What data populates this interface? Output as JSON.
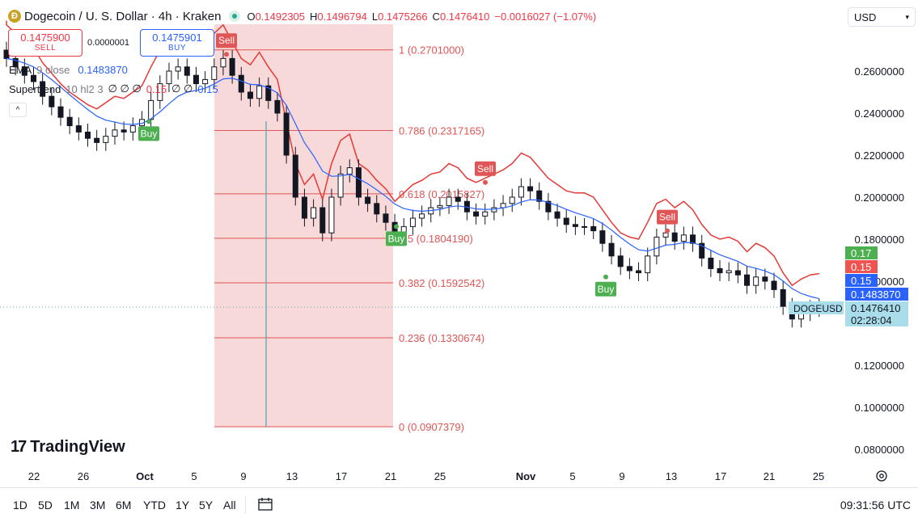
{
  "header": {
    "coin_glyph": "Ð",
    "title": "Dogecoin / U. S. Dollar · 4h · Kraken",
    "ohlc": [
      {
        "k": "O",
        "v": "0.1492305"
      },
      {
        "k": "H",
        "v": "0.1496794"
      },
      {
        "k": "L",
        "v": "0.1475266"
      },
      {
        "k": "C",
        "v": "0.1476410"
      },
      {
        "k": "",
        "v": "−0.0016027 (−1.07%)"
      }
    ],
    "currency": "USD"
  },
  "trade": {
    "sell_price": "0.1475900",
    "sell_label": "SELL",
    "spread": "0.0000001",
    "buy_price": "0.1475901",
    "buy_label": "BUY"
  },
  "indicators": {
    "ema_name": "EMA",
    "ema_params": "9 close",
    "ema_value": "0.1483870",
    "st_name": "Supertrend",
    "st_params": "10 hl2 3",
    "st_vals": "∅ ∅ ∅",
    "st_red": "0.15",
    "st_vals2": "∅ ∅",
    "st_blue": "0.15",
    "collapse_glyph": "^"
  },
  "branding": {
    "logo_mark": "17",
    "logo_text": "TradingView"
  },
  "timeframes": [
    "1D",
    "5D",
    "1M",
    "3M",
    "6M",
    "YTD",
    "1Y",
    "5Y",
    "All"
  ],
  "clock": "09:31:56 UTC",
  "chart_data": {
    "type": "candlestick",
    "symbol": "DOGEUSD",
    "interval": "4h",
    "y_axis_ticks": [
      "0.2600000",
      "0.2400000",
      "0.2200000",
      "0.2000000",
      "0.1800000",
      "0.1600000",
      "0.1200000",
      "0.1000000",
      "0.0800000"
    ],
    "ylim": [
      0.07,
      0.29
    ],
    "x_axis_ticks": [
      "22",
      "26",
      "Oct",
      "5",
      "9",
      "13",
      "17",
      "21",
      "25",
      "Nov",
      "5",
      "9",
      "13",
      "17",
      "21",
      "25"
    ],
    "fibonacci": {
      "levels": [
        {
          "label": "1 (0.2701000)",
          "value": 0.2701
        },
        {
          "label": "0.786 (0.2317165)",
          "value": 0.2317165
        },
        {
          "label": "0.618 (0.2015827)",
          "value": 0.2015827
        },
        {
          "label": "0.5 (0.1804190)",
          "value": 0.180419
        },
        {
          "label": "0.382 (0.1592542)",
          "value": 0.1592542
        },
        {
          "label": "0.236 (0.1330674)",
          "value": 0.1330674
        },
        {
          "label": "0 (0.0907379)",
          "value": 0.0907379
        }
      ]
    },
    "signals": [
      {
        "label": "Sell",
        "type": "sell"
      },
      {
        "label": "Sell",
        "type": "sell"
      },
      {
        "label": "Buy",
        "type": "buy"
      },
      {
        "label": "Buy",
        "type": "buy"
      },
      {
        "label": "Sell",
        "type": "sell"
      },
      {
        "label": "Sell",
        "type": "sell"
      },
      {
        "label": "Buy",
        "type": "buy"
      }
    ],
    "price_labels": [
      {
        "text": "0.17",
        "color": "#4caf50"
      },
      {
        "text": "0.15",
        "color": "#ef5350"
      },
      {
        "text": "0.15",
        "color": "#2962ff"
      },
      {
        "text": "0.1483870",
        "color": "#2962ff"
      },
      {
        "text": "0.1476410",
        "color": "#a8dde9"
      },
      {
        "text": "02:28:04",
        "color": "#a8dde9"
      }
    ],
    "last_price": 0.147641,
    "ema_value": 0.148387,
    "colors": {
      "up": "#131722",
      "down": "#131722",
      "ema": "#2962ff",
      "st_up": "#43a047",
      "st_down": "#e53935",
      "fib_fill": "#f4cccc"
    },
    "series": [
      {
        "name": "DOGEUSD",
        "close": [
          0.266,
          0.262,
          0.258,
          0.255,
          0.248,
          0.243,
          0.238,
          0.234,
          0.231,
          0.228,
          0.226,
          0.229,
          0.232,
          0.231,
          0.234,
          0.237,
          0.246,
          0.254,
          0.26,
          0.262,
          0.258,
          0.254,
          0.256,
          0.262,
          0.266,
          0.258,
          0.25,
          0.247,
          0.253,
          0.246,
          0.24,
          0.22,
          0.2,
          0.19,
          0.195,
          0.183,
          0.2,
          0.211,
          0.214,
          0.2,
          0.197,
          0.192,
          0.188,
          0.182,
          0.186,
          0.19,
          0.192,
          0.195,
          0.196,
          0.2,
          0.198,
          0.193,
          0.191,
          0.193,
          0.195,
          0.197,
          0.2,
          0.205,
          0.203,
          0.198,
          0.193,
          0.19,
          0.187,
          0.186,
          0.186,
          0.184,
          0.178,
          0.172,
          0.167,
          0.165,
          0.164,
          0.172,
          0.181,
          0.183,
          0.179,
          0.182,
          0.178,
          0.171,
          0.166,
          0.164,
          0.165,
          0.163,
          0.158,
          0.162,
          0.16,
          0.156,
          0.148,
          0.142,
          0.145,
          0.147,
          0.1476
        ]
      }
    ]
  }
}
